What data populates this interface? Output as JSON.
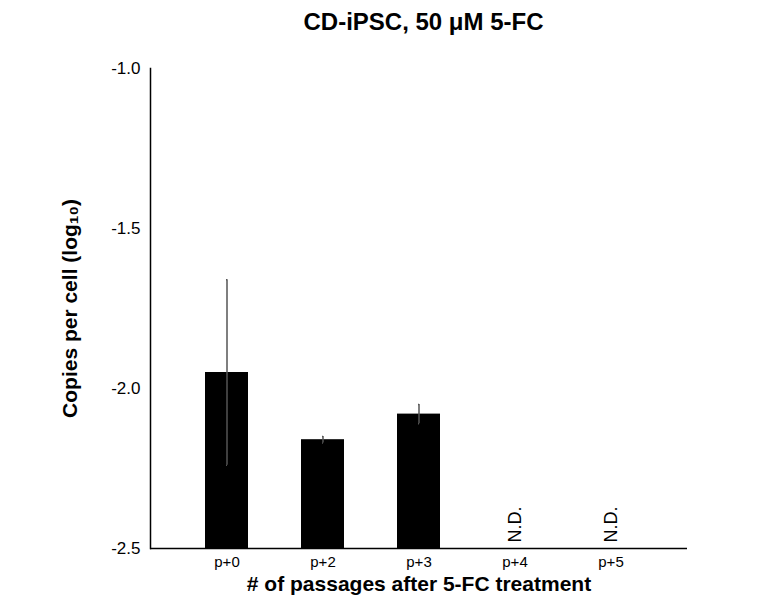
{
  "chart_data": {
    "type": "bar",
    "title": "CD-iPSC, 50 μM 5-FC",
    "x_label": "# of passages after 5-FC treatment",
    "y_label": "Copies per cell (log₁₀)",
    "categories": [
      "p+0",
      "p+2",
      "p+3",
      "p+4",
      "p+5"
    ],
    "values": [
      -1.95,
      -2.16,
      -2.08,
      null,
      null
    ],
    "errors": [
      0.29,
      0.01,
      0.03,
      null,
      null
    ],
    "annotations": [
      {
        "category": "p+4",
        "text": "N.D."
      },
      {
        "category": "p+5",
        "text": "N.D."
      }
    ],
    "color": "#000000",
    "ylim": [
      -2.5,
      -1.0
    ],
    "yticks": [
      {
        "value": -2.5,
        "label": "-2.5"
      },
      {
        "value": -2.0,
        "label": "-2.0"
      },
      {
        "value": -1.5,
        "label": "-1.5"
      },
      {
        "value": -1.0,
        "label": "-1.0"
      }
    ],
    "grid": false
  }
}
